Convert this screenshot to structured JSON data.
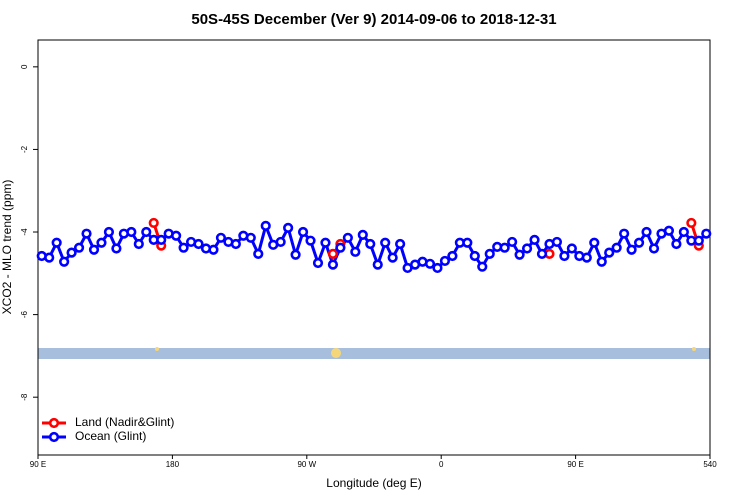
{
  "chart_data": {
    "type": "line",
    "title": "50S-45S December (Ver 9)   2014-09-06 to 2018-12-31",
    "xlabel": "Longitude (deg E)",
    "ylabel": "XCO2 - MLO trend (ppm)",
    "x": [
      92.5,
      97.5,
      102.5,
      107.5,
      112.5,
      117.5,
      122.5,
      127.5,
      132.5,
      137.5,
      142.5,
      147.5,
      152.5,
      157.5,
      162.5,
      167.5,
      172.5,
      177.5,
      182.5,
      187.5,
      192.5,
      197.5,
      202.5,
      207.5,
      212.5,
      217.5,
      222.5,
      227.5,
      232.5,
      237.5,
      242.5,
      247.5,
      252.5,
      257.5,
      262.5,
      267.5,
      272.5,
      277.5,
      282.5,
      287.5,
      292.5,
      297.5,
      302.5,
      307.5,
      312.5,
      317.5,
      322.5,
      327.5,
      332.5,
      337.5,
      342.5,
      347.5,
      352.5,
      357.5,
      362.5,
      367.5,
      372.5,
      377.5,
      382.5,
      387.5,
      392.5,
      397.5,
      402.5,
      407.5,
      412.5,
      417.5,
      422.5,
      427.5,
      432.5,
      437.5,
      442.5,
      447.5,
      452.5,
      457.5,
      462.5,
      467.5,
      472.5,
      477.5,
      482.5,
      487.5,
      492.5,
      497.5,
      502.5,
      507.5,
      512.5,
      517.5,
      522.5,
      527.5,
      532.5,
      537.5
    ],
    "series": [
      {
        "name": "Land (Nadir&Glint)",
        "color": "#ff0000",
        "values": [
          null,
          null,
          null,
          null,
          null,
          null,
          null,
          null,
          null,
          null,
          null,
          null,
          null,
          null,
          null,
          -3.78,
          -4.33,
          null,
          null,
          null,
          null,
          null,
          null,
          null,
          null,
          null,
          null,
          null,
          null,
          null,
          null,
          null,
          null,
          null,
          null,
          null,
          null,
          null,
          null,
          -4.53,
          -4.29,
          null,
          null,
          null,
          null,
          null,
          null,
          null,
          null,
          null,
          null,
          null,
          null,
          null,
          null,
          null,
          null,
          null,
          null,
          null,
          null,
          null,
          null,
          null,
          null,
          null,
          null,
          null,
          -4.53,
          null,
          null,
          null,
          null,
          null,
          null,
          null,
          null,
          null,
          null,
          null,
          null,
          null,
          null,
          null,
          null,
          null,
          null,
          -3.78,
          -4.33,
          null
        ]
      },
      {
        "name": "Ocean (Glint)",
        "color": "#0000ff",
        "values": [
          -4.58,
          -4.62,
          -4.26,
          -4.72,
          -4.5,
          -4.38,
          -4.04,
          -4.43,
          -4.26,
          -4.0,
          -4.4,
          -4.04,
          -4.0,
          -4.29,
          -4.0,
          -4.19,
          -4.19,
          -4.04,
          -4.09,
          -4.38,
          -4.24,
          -4.29,
          -4.4,
          -4.43,
          -4.14,
          -4.24,
          -4.29,
          -4.09,
          -4.14,
          -4.53,
          -3.85,
          -4.31,
          -4.24,
          -3.9,
          -4.55,
          -4.0,
          -4.21,
          -4.75,
          -4.26,
          -4.79,
          -4.38,
          -4.14,
          -4.48,
          -4.07,
          -4.29,
          -4.79,
          -4.26,
          -4.62,
          -4.29,
          -4.87,
          -4.79,
          -4.72,
          -4.77,
          -4.87,
          -4.7,
          -4.58,
          -4.26,
          -4.26,
          -4.58,
          -4.84,
          -4.53,
          -4.36,
          -4.38,
          -4.24,
          -4.55,
          -4.4,
          -4.19,
          -4.53,
          -4.29,
          -4.24,
          -4.58,
          -4.4,
          -4.58,
          -4.62,
          -4.26,
          -4.72,
          -4.5,
          -4.38,
          -4.04,
          -4.43,
          -4.26,
          -4.0,
          -4.4,
          -4.04,
          -3.97,
          -4.29,
          -4.0,
          -4.21,
          -4.21,
          -4.04
        ]
      }
    ],
    "xlim": [
      90,
      540
    ],
    "xticks": [
      {
        "value": 90,
        "label": "90 E"
      },
      180,
      {
        "value": 270,
        "label": "90 W"
      },
      {
        "value": 360,
        "label": "0"
      },
      {
        "value": 450,
        "label": "90 E"
      },
      540
    ],
    "ylim": [
      -9.4,
      0.65
    ],
    "yticks": [
      0,
      -2,
      -4,
      -6,
      -8
    ],
    "legend": "lower left"
  }
}
